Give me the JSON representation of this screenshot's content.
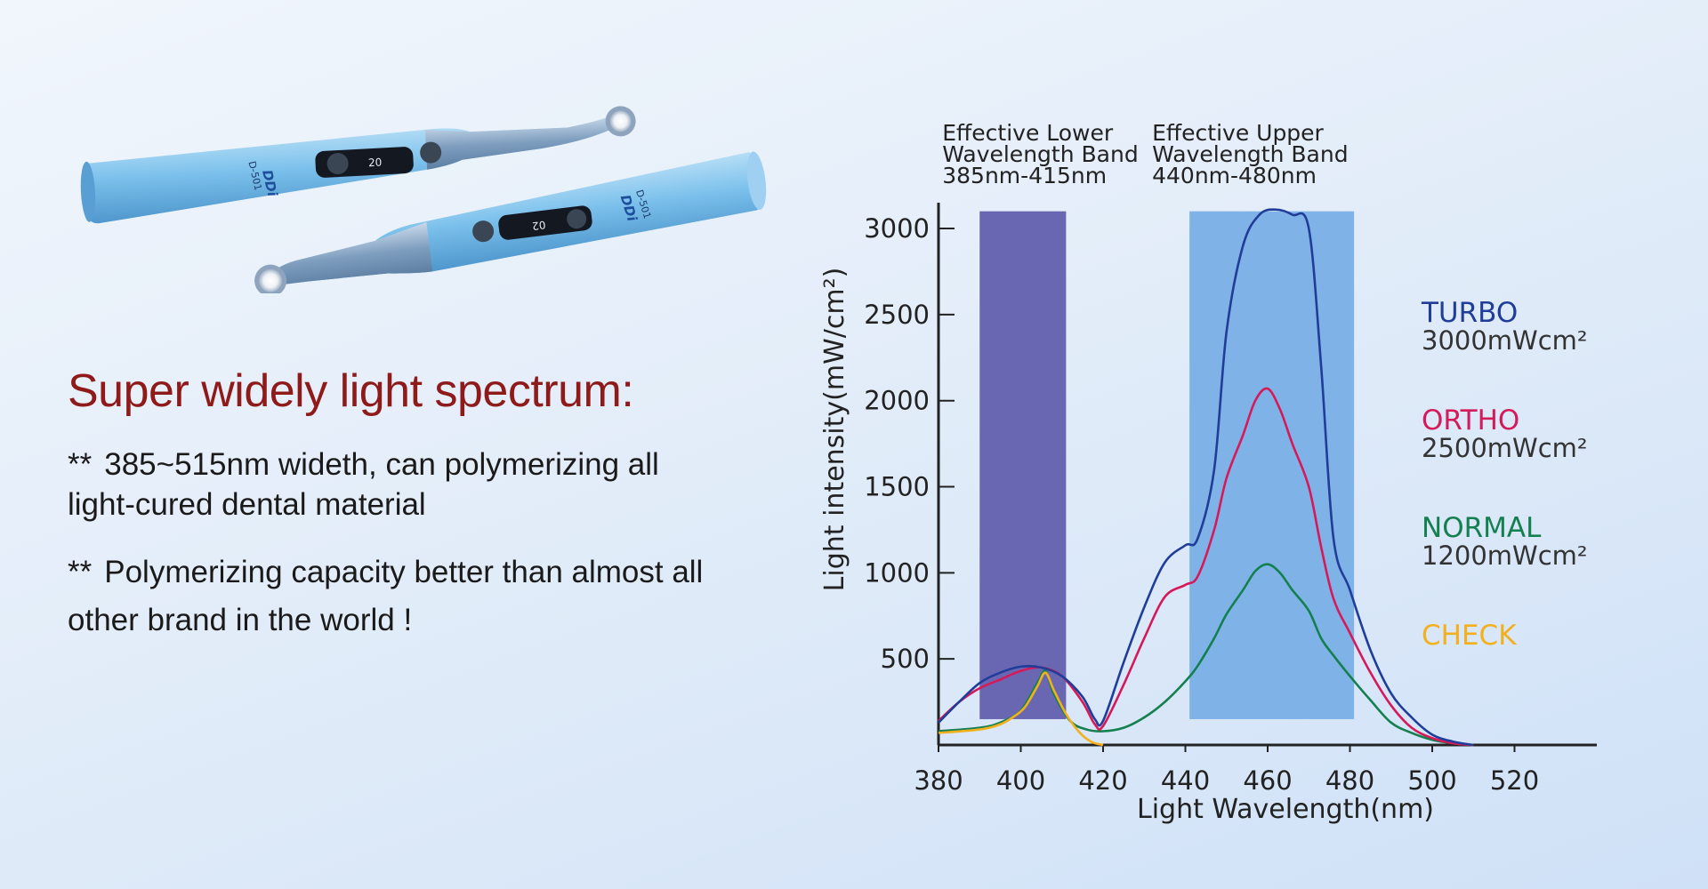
{
  "product": {
    "brand_logo": "DDi",
    "model": "D-501",
    "display_a": "20",
    "display_b": "02"
  },
  "headline": "Super widely light spectrum:",
  "bullets": [
    {
      "marker": "**",
      "text": "385~515nm wideth, can polymerizing all light-cured dental material"
    },
    {
      "marker": "**",
      "text": "Polymerizing capacity better than almost all other brand in the world !"
    }
  ],
  "chart_data": {
    "type": "line",
    "title": "",
    "xlabel": "Light Wavelength(nm)",
    "ylabel": "Light intensity(mW/cm²)",
    "xlim": [
      380,
      540
    ],
    "ylim": [
      0,
      3150
    ],
    "x_ticks": [
      380,
      400,
      420,
      440,
      460,
      480,
      500,
      520
    ],
    "y_ticks": [
      500,
      1000,
      1500,
      2000,
      2500,
      3000
    ],
    "grid": false,
    "bands": [
      {
        "lines": [
          "Effective Lower",
          "Wavelength Band",
          "385nm-415nm"
        ],
        "x_range": [
          390,
          411
        ],
        "color": "#6a67b2"
      },
      {
        "lines": [
          "Effective Upper",
          "Wavelength Band",
          "440nm-480nm"
        ],
        "x_range": [
          441,
          481
        ],
        "color": "#7fb3e8"
      }
    ],
    "series": [
      {
        "name": "TURBO",
        "power": "3000mWcm²",
        "color": "#1f3d99",
        "points": [
          [
            380,
            130
          ],
          [
            385,
            250
          ],
          [
            390,
            360
          ],
          [
            395,
            420
          ],
          [
            400,
            455
          ],
          [
            405,
            450
          ],
          [
            410,
            400
          ],
          [
            415,
            280
          ],
          [
            418,
            150
          ],
          [
            420,
            140
          ],
          [
            425,
            480
          ],
          [
            430,
            800
          ],
          [
            435,
            1060
          ],
          [
            440,
            1160
          ],
          [
            443,
            1200
          ],
          [
            447,
            1600
          ],
          [
            450,
            2400
          ],
          [
            454,
            2900
          ],
          [
            458,
            3080
          ],
          [
            462,
            3110
          ],
          [
            466,
            3080
          ],
          [
            470,
            3000
          ],
          [
            473,
            2200
          ],
          [
            476,
            1200
          ],
          [
            480,
            900
          ],
          [
            485,
            550
          ],
          [
            490,
            300
          ],
          [
            495,
            160
          ],
          [
            500,
            60
          ],
          [
            505,
            20
          ],
          [
            510,
            0
          ]
        ]
      },
      {
        "name": "ORTHO",
        "power": "2500mWcm²",
        "color": "#d51a5a",
        "points": [
          [
            380,
            140
          ],
          [
            385,
            250
          ],
          [
            390,
            330
          ],
          [
            395,
            380
          ],
          [
            400,
            430
          ],
          [
            405,
            450
          ],
          [
            410,
            400
          ],
          [
            415,
            250
          ],
          [
            418,
            120
          ],
          [
            420,
            110
          ],
          [
            425,
            350
          ],
          [
            430,
            620
          ],
          [
            435,
            860
          ],
          [
            440,
            930
          ],
          [
            443,
            980
          ],
          [
            447,
            1250
          ],
          [
            450,
            1550
          ],
          [
            454,
            1800
          ],
          [
            457,
            2000
          ],
          [
            460,
            2070
          ],
          [
            463,
            1950
          ],
          [
            466,
            1750
          ],
          [
            470,
            1500
          ],
          [
            473,
            1150
          ],
          [
            476,
            850
          ],
          [
            480,
            650
          ],
          [
            485,
            420
          ],
          [
            490,
            230
          ],
          [
            495,
            100
          ],
          [
            500,
            40
          ],
          [
            505,
            10
          ],
          [
            510,
            0
          ]
        ]
      },
      {
        "name": "NORMAL",
        "power": "1200mWcm²",
        "color": "#148050",
        "points": [
          [
            380,
            80
          ],
          [
            390,
            100
          ],
          [
            395,
            130
          ],
          [
            400,
            200
          ],
          [
            404,
            360
          ],
          [
            406,
            430
          ],
          [
            408,
            300
          ],
          [
            412,
            140
          ],
          [
            416,
            90
          ],
          [
            420,
            80
          ],
          [
            425,
            100
          ],
          [
            430,
            160
          ],
          [
            435,
            250
          ],
          [
            440,
            370
          ],
          [
            443,
            460
          ],
          [
            447,
            620
          ],
          [
            450,
            760
          ],
          [
            454,
            900
          ],
          [
            457,
            1010
          ],
          [
            460,
            1050
          ],
          [
            463,
            1000
          ],
          [
            466,
            900
          ],
          [
            470,
            780
          ],
          [
            473,
            620
          ],
          [
            476,
            520
          ],
          [
            480,
            400
          ],
          [
            485,
            260
          ],
          [
            490,
            130
          ],
          [
            495,
            70
          ],
          [
            500,
            30
          ],
          [
            505,
            10
          ],
          [
            510,
            0
          ]
        ]
      },
      {
        "name": "CHECK",
        "power": "",
        "color": "#f2b01c",
        "points": [
          [
            380,
            70
          ],
          [
            390,
            90
          ],
          [
            395,
            120
          ],
          [
            398,
            160
          ],
          [
            401,
            220
          ],
          [
            404,
            340
          ],
          [
            406,
            420
          ],
          [
            408,
            320
          ],
          [
            411,
            180
          ],
          [
            414,
            80
          ],
          [
            417,
            20
          ],
          [
            420,
            0
          ]
        ]
      }
    ]
  }
}
